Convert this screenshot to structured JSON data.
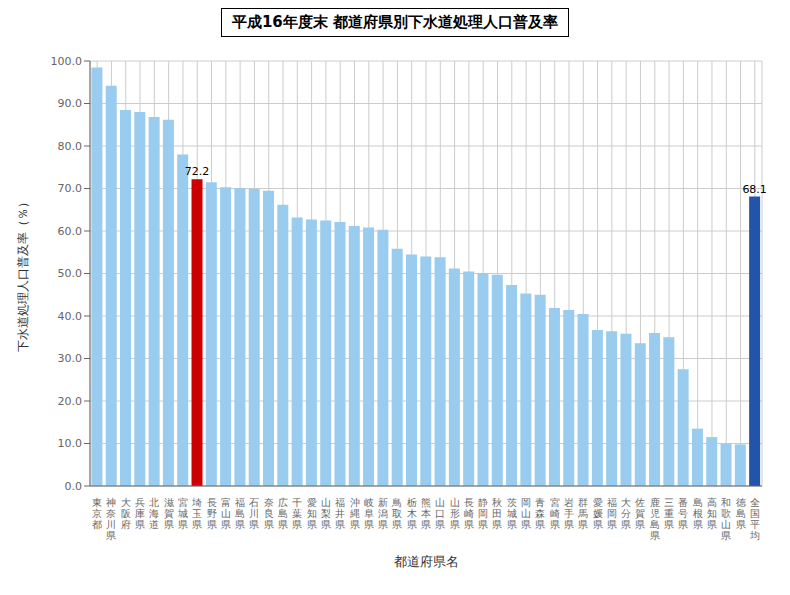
{
  "chart_data": {
    "type": "bar",
    "title": "平成16年度末  都道府県別下水道処理人口普及率",
    "xlabel": "都道府県名",
    "ylabel": "下水道処理人口普及率（％）",
    "categories": [
      "東京都",
      "神奈川県",
      "大阪府",
      "兵庫県",
      "北海道",
      "滋賀県",
      "宮城県",
      "埼玉県",
      "長野県",
      "富山県",
      "福島県",
      "石川県",
      "奈良県",
      "広島県",
      "千葉県",
      "愛知県",
      "山梨県",
      "福井県",
      "沖縄県",
      "岐阜県",
      "新潟県",
      "鳥取県",
      "栃木県",
      "熊本県",
      "山口県",
      "山形県",
      "長崎県",
      "静岡県",
      "秋田県",
      "茨城県",
      "岡山県",
      "青森県",
      "宮崎県",
      "岩手県",
      "群馬県",
      "愛媛県",
      "福岡県",
      "大分県",
      "佐賀県",
      "鹿児島県",
      "三重県",
      "番号県",
      "島根県",
      "高知県",
      "和歌山県",
      "徳島県",
      "全国平均"
    ],
    "values": [
      98.5,
      94.2,
      88.5,
      88.0,
      86.8,
      86.2,
      78.0,
      72.2,
      71.5,
      70.3,
      70.1,
      69.9,
      69.5,
      66.2,
      63.2,
      62.7,
      62.5,
      62.1,
      61.2,
      60.8,
      60.3,
      55.8,
      54.5,
      54.0,
      53.8,
      51.2,
      50.5,
      50.1,
      49.7,
      47.3,
      45.3,
      45.0,
      41.9,
      41.4,
      40.5,
      36.7,
      36.4,
      35.8,
      33.6,
      36.0,
      35.0,
      27.5,
      13.5,
      11.5,
      10.0,
      9.8,
      68.1
    ],
    "colors": [
      "#99ccee",
      "#99ccee",
      "#99ccee",
      "#99ccee",
      "#99ccee",
      "#99ccee",
      "#99ccee",
      "#cc0000",
      "#99ccee",
      "#99ccee",
      "#99ccee",
      "#99ccee",
      "#99ccee",
      "#99ccee",
      "#99ccee",
      "#99ccee",
      "#99ccee",
      "#99ccee",
      "#99ccee",
      "#99ccee",
      "#99ccee",
      "#99ccee",
      "#99ccee",
      "#99ccee",
      "#99ccee",
      "#99ccee",
      "#99ccee",
      "#99ccee",
      "#99ccee",
      "#99ccee",
      "#99ccee",
      "#99ccee",
      "#99ccee",
      "#99ccee",
      "#99ccee",
      "#99ccee",
      "#99ccee",
      "#99ccee",
      "#99ccee",
      "#99ccee",
      "#99ccee",
      "#99ccee",
      "#99ccee",
      "#99ccee",
      "#99ccee",
      "#99ccee",
      "#2255aa"
    ],
    "annotations": [
      {
        "category": "埼玉県",
        "text": "72.2"
      },
      {
        "category": "全国平均",
        "text": "68.1"
      }
    ],
    "ylim": [
      0,
      100
    ],
    "yticks": [
      {
        "value": 0,
        "label": "0.0"
      },
      {
        "value": 10,
        "label": "10.0"
      },
      {
        "value": 20,
        "label": "20.0"
      },
      {
        "value": 30,
        "label": "30.0"
      },
      {
        "value": 40,
        "label": "40.0"
      },
      {
        "value": 50,
        "label": "50.0"
      },
      {
        "value": 60,
        "label": "60.0"
      },
      {
        "value": 70,
        "label": "70.0"
      },
      {
        "value": 80,
        "label": "80.0"
      },
      {
        "value": 90,
        "label": "90.0"
      },
      {
        "value": 100,
        "label": "100.0"
      }
    ],
    "grid": true
  }
}
